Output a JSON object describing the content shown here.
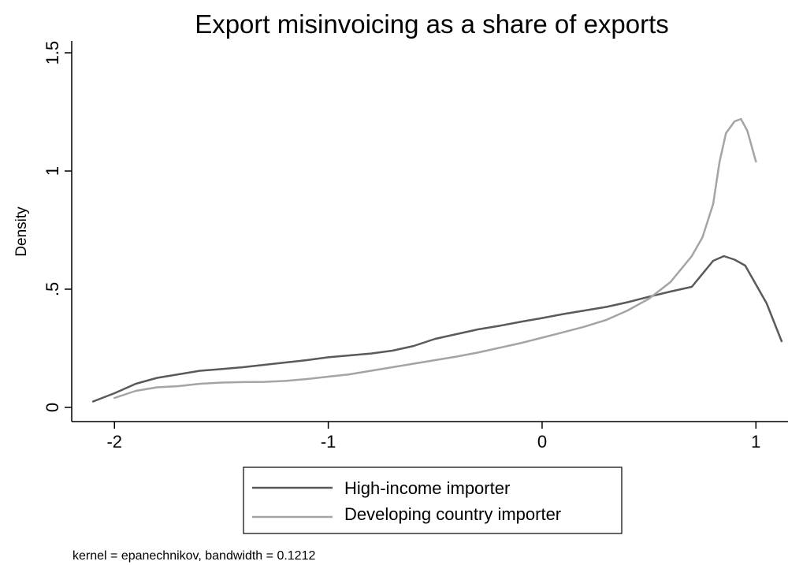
{
  "chart_data": {
    "type": "line",
    "title": "Export misinvoicing as a share of exports",
    "xlabel": "",
    "ylabel": "Density",
    "xlim": [
      -2.2,
      1.15
    ],
    "ylim": [
      -0.06,
      1.55
    ],
    "x_ticks": [
      -2,
      -1,
      0,
      1
    ],
    "x_tick_labels": [
      "-2",
      "-1",
      "0",
      "1"
    ],
    "y_ticks": [
      0,
      0.5,
      1,
      1.5
    ],
    "y_tick_labels": [
      "0",
      ".5",
      "1",
      "1.5"
    ],
    "grid": false,
    "legend_position": "bottom",
    "note": "kernel = epanechnikov, bandwidth = 0.1212",
    "series": [
      {
        "name": "High-income importer",
        "color": "#5a5a5a",
        "x": [
          -2.1,
          -2.0,
          -1.9,
          -1.8,
          -1.7,
          -1.6,
          -1.5,
          -1.4,
          -1.3,
          -1.2,
          -1.1,
          -1.0,
          -0.9,
          -0.8,
          -0.7,
          -0.6,
          -0.5,
          -0.4,
          -0.3,
          -0.2,
          -0.1,
          0.0,
          0.1,
          0.2,
          0.3,
          0.4,
          0.5,
          0.6,
          0.65,
          0.7,
          0.8,
          0.85,
          0.9,
          0.95,
          1.0,
          1.05,
          1.12
        ],
        "y": [
          0.025,
          0.06,
          0.1,
          0.125,
          0.14,
          0.155,
          0.162,
          0.17,
          0.18,
          0.19,
          0.2,
          0.212,
          0.22,
          0.228,
          0.24,
          0.26,
          0.29,
          0.31,
          0.33,
          0.345,
          0.362,
          0.378,
          0.395,
          0.41,
          0.425,
          0.445,
          0.468,
          0.49,
          0.5,
          0.51,
          0.62,
          0.64,
          0.625,
          0.6,
          0.52,
          0.44,
          0.28
        ]
      },
      {
        "name": "Developing country importer",
        "color": "#a4a4a4",
        "x": [
          -2.0,
          -1.9,
          -1.8,
          -1.7,
          -1.6,
          -1.5,
          -1.4,
          -1.3,
          -1.2,
          -1.1,
          -1.0,
          -0.9,
          -0.8,
          -0.7,
          -0.6,
          -0.5,
          -0.4,
          -0.3,
          -0.2,
          -0.1,
          0.0,
          0.1,
          0.2,
          0.3,
          0.4,
          0.5,
          0.6,
          0.7,
          0.75,
          0.8,
          0.83,
          0.86,
          0.9,
          0.93,
          0.96,
          1.0
        ],
        "y": [
          0.04,
          0.07,
          0.085,
          0.09,
          0.1,
          0.105,
          0.107,
          0.108,
          0.112,
          0.12,
          0.13,
          0.14,
          0.155,
          0.17,
          0.185,
          0.2,
          0.215,
          0.232,
          0.252,
          0.272,
          0.295,
          0.318,
          0.342,
          0.37,
          0.41,
          0.46,
          0.53,
          0.64,
          0.72,
          0.86,
          1.04,
          1.16,
          1.21,
          1.22,
          1.17,
          1.04
        ]
      }
    ]
  }
}
